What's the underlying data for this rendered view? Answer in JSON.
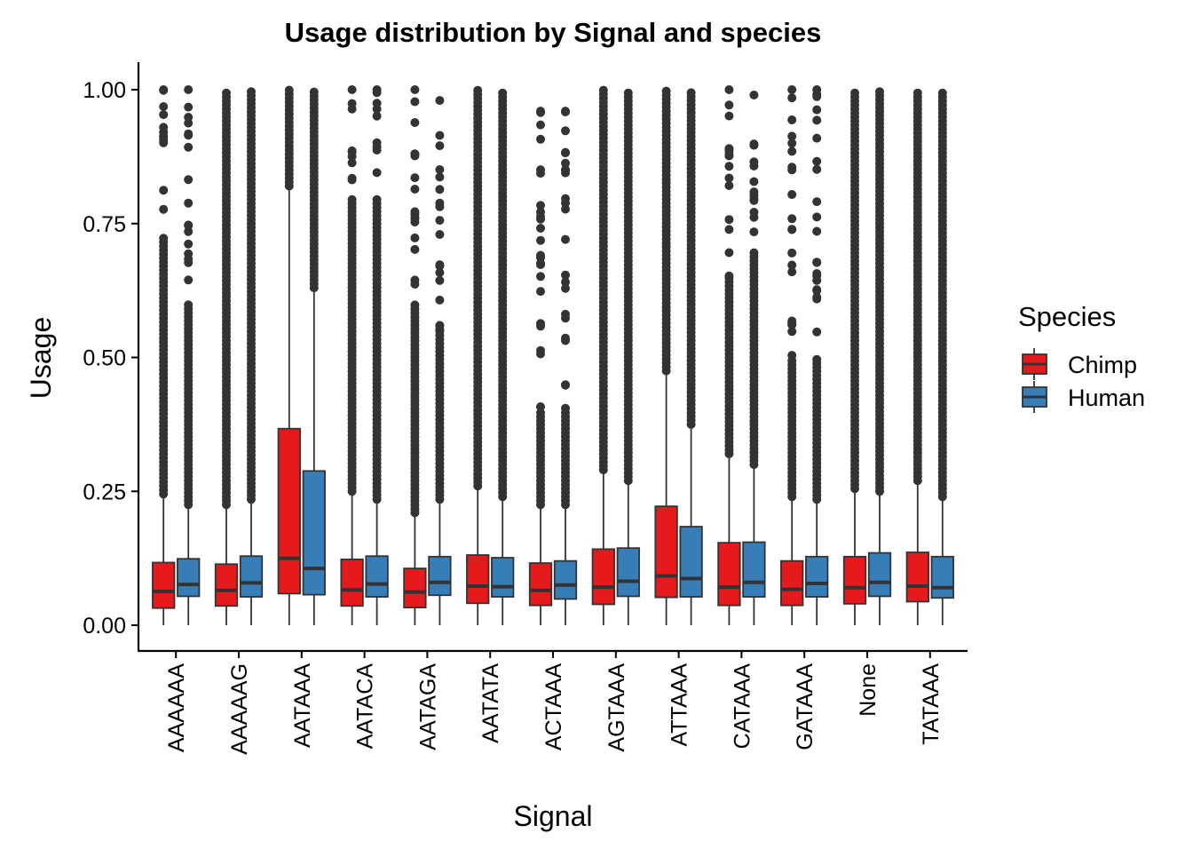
{
  "chart_data": {
    "type": "boxplot",
    "title": "Usage distribution by Signal and species",
    "xlabel": "Signal",
    "ylabel": "Usage",
    "ylim": [
      -0.05,
      1.05
    ],
    "yticks": [
      0.0,
      0.25,
      0.5,
      0.75,
      1.0
    ],
    "ytick_labels": [
      "0.00",
      "0.25",
      "0.50",
      "0.75",
      "1.00"
    ],
    "categories": [
      "AAAAAA",
      "AAAAAG",
      "AATAAA",
      "AATACA",
      "AATAGA",
      "AATATA",
      "ACTAAA",
      "AGTAAA",
      "ATTAAA",
      "CATAAA",
      "GATAAA",
      "None",
      "TATAAA"
    ],
    "legend": {
      "title": "Species",
      "position": "right",
      "entries": [
        {
          "name": "Chimp",
          "color": "#e41a1c"
        },
        {
          "name": "Human",
          "color": "#377eb8"
        }
      ]
    },
    "series": [
      {
        "name": "Chimp",
        "color": "#e41a1c",
        "boxes": [
          {
            "lower": 0.0,
            "q1": 0.032,
            "median": 0.063,
            "q3": 0.117,
            "upper": 0.245,
            "outliers_range": [
              0.245,
              1.0
            ],
            "outliers_dense_to": 0.73
          },
          {
            "lower": 0.0,
            "q1": 0.036,
            "median": 0.065,
            "q3": 0.114,
            "upper": 0.225,
            "outliers_range": [
              0.225,
              1.0
            ],
            "outliers_dense_to": 1.0
          },
          {
            "lower": 0.0,
            "q1": 0.059,
            "median": 0.125,
            "q3": 0.367,
            "upper": 0.82,
            "outliers_range": [
              0.82,
              1.0
            ],
            "outliers_dense_to": 1.0
          },
          {
            "lower": 0.0,
            "q1": 0.036,
            "median": 0.066,
            "q3": 0.123,
            "upper": 0.25,
            "outliers_range": [
              0.25,
              1.0
            ],
            "outliers_dense_to": 0.8
          },
          {
            "lower": 0.0,
            "q1": 0.033,
            "median": 0.062,
            "q3": 0.106,
            "upper": 0.21,
            "outliers_range": [
              0.21,
              1.0
            ],
            "outliers_dense_to": 0.6
          },
          {
            "lower": 0.0,
            "q1": 0.041,
            "median": 0.073,
            "q3": 0.131,
            "upper": 0.26,
            "outliers_range": [
              0.26,
              1.0
            ],
            "outliers_dense_to": 1.0
          },
          {
            "lower": 0.0,
            "q1": 0.037,
            "median": 0.065,
            "q3": 0.116,
            "upper": 0.225,
            "outliers_range": [
              0.225,
              0.96
            ],
            "outliers_dense_to": 0.4
          },
          {
            "lower": 0.0,
            "q1": 0.039,
            "median": 0.071,
            "q3": 0.142,
            "upper": 0.29,
            "outliers_range": [
              0.29,
              1.0
            ],
            "outliers_dense_to": 1.0
          },
          {
            "lower": 0.0,
            "q1": 0.052,
            "median": 0.092,
            "q3": 0.222,
            "upper": 0.475,
            "outliers_range": [
              0.475,
              1.0
            ],
            "outliers_dense_to": 1.0
          },
          {
            "lower": 0.0,
            "q1": 0.037,
            "median": 0.071,
            "q3": 0.154,
            "upper": 0.32,
            "outliers_range": [
              0.32,
              1.0
            ],
            "outliers_dense_to": 0.65
          },
          {
            "lower": 0.0,
            "q1": 0.037,
            "median": 0.067,
            "q3": 0.12,
            "upper": 0.24,
            "outliers_range": [
              0.24,
              1.0
            ],
            "outliers_dense_to": 0.5
          },
          {
            "lower": 0.0,
            "q1": 0.04,
            "median": 0.07,
            "q3": 0.128,
            "upper": 0.255,
            "outliers_range": [
              0.255,
              1.0
            ],
            "outliers_dense_to": 1.0
          },
          {
            "lower": 0.0,
            "q1": 0.044,
            "median": 0.073,
            "q3": 0.136,
            "upper": 0.27,
            "outliers_range": [
              0.27,
              1.0
            ],
            "outliers_dense_to": 1.0
          }
        ]
      },
      {
        "name": "Human",
        "color": "#377eb8",
        "boxes": [
          {
            "lower": 0.0,
            "q1": 0.054,
            "median": 0.076,
            "q3": 0.124,
            "upper": 0.225,
            "outliers_range": [
              0.225,
              1.0
            ],
            "outliers_dense_to": 0.6
          },
          {
            "lower": 0.0,
            "q1": 0.053,
            "median": 0.079,
            "q3": 0.129,
            "upper": 0.235,
            "outliers_range": [
              0.235,
              1.0
            ],
            "outliers_dense_to": 1.0
          },
          {
            "lower": 0.0,
            "q1": 0.057,
            "median": 0.106,
            "q3": 0.288,
            "upper": 0.63,
            "outliers_range": [
              0.63,
              1.0
            ],
            "outliers_dense_to": 1.0
          },
          {
            "lower": 0.0,
            "q1": 0.053,
            "median": 0.077,
            "q3": 0.129,
            "upper": 0.235,
            "outliers_range": [
              0.235,
              1.0
            ],
            "outliers_dense_to": 0.8
          },
          {
            "lower": 0.0,
            "q1": 0.056,
            "median": 0.08,
            "q3": 0.128,
            "upper": 0.235,
            "outliers_range": [
              0.235,
              0.98
            ],
            "outliers_dense_to": 0.55
          },
          {
            "lower": 0.0,
            "q1": 0.053,
            "median": 0.072,
            "q3": 0.126,
            "upper": 0.24,
            "outliers_range": [
              0.24,
              1.0
            ],
            "outliers_dense_to": 1.0
          },
          {
            "lower": 0.0,
            "q1": 0.049,
            "median": 0.075,
            "q3": 0.12,
            "upper": 0.225,
            "outliers_range": [
              0.225,
              0.96
            ],
            "outliers_dense_to": 0.4
          },
          {
            "lower": 0.0,
            "q1": 0.054,
            "median": 0.082,
            "q3": 0.144,
            "upper": 0.27,
            "outliers_range": [
              0.27,
              1.0
            ],
            "outliers_dense_to": 1.0
          },
          {
            "lower": 0.0,
            "q1": 0.053,
            "median": 0.087,
            "q3": 0.184,
            "upper": 0.375,
            "outliers_range": [
              0.375,
              1.0
            ],
            "outliers_dense_to": 1.0
          },
          {
            "lower": 0.0,
            "q1": 0.053,
            "median": 0.08,
            "q3": 0.155,
            "upper": 0.3,
            "outliers_range": [
              0.3,
              0.99
            ],
            "outliers_dense_to": 0.7
          },
          {
            "lower": 0.0,
            "q1": 0.053,
            "median": 0.078,
            "q3": 0.128,
            "upper": 0.235,
            "outliers_range": [
              0.235,
              1.0
            ],
            "outliers_dense_to": 0.5
          },
          {
            "lower": 0.0,
            "q1": 0.054,
            "median": 0.08,
            "q3": 0.135,
            "upper": 0.25,
            "outliers_range": [
              0.25,
              1.0
            ],
            "outliers_dense_to": 1.0
          },
          {
            "lower": 0.0,
            "q1": 0.051,
            "median": 0.07,
            "q3": 0.128,
            "upper": 0.24,
            "outliers_range": [
              0.24,
              1.0
            ],
            "outliers_dense_to": 1.0
          }
        ]
      }
    ]
  }
}
